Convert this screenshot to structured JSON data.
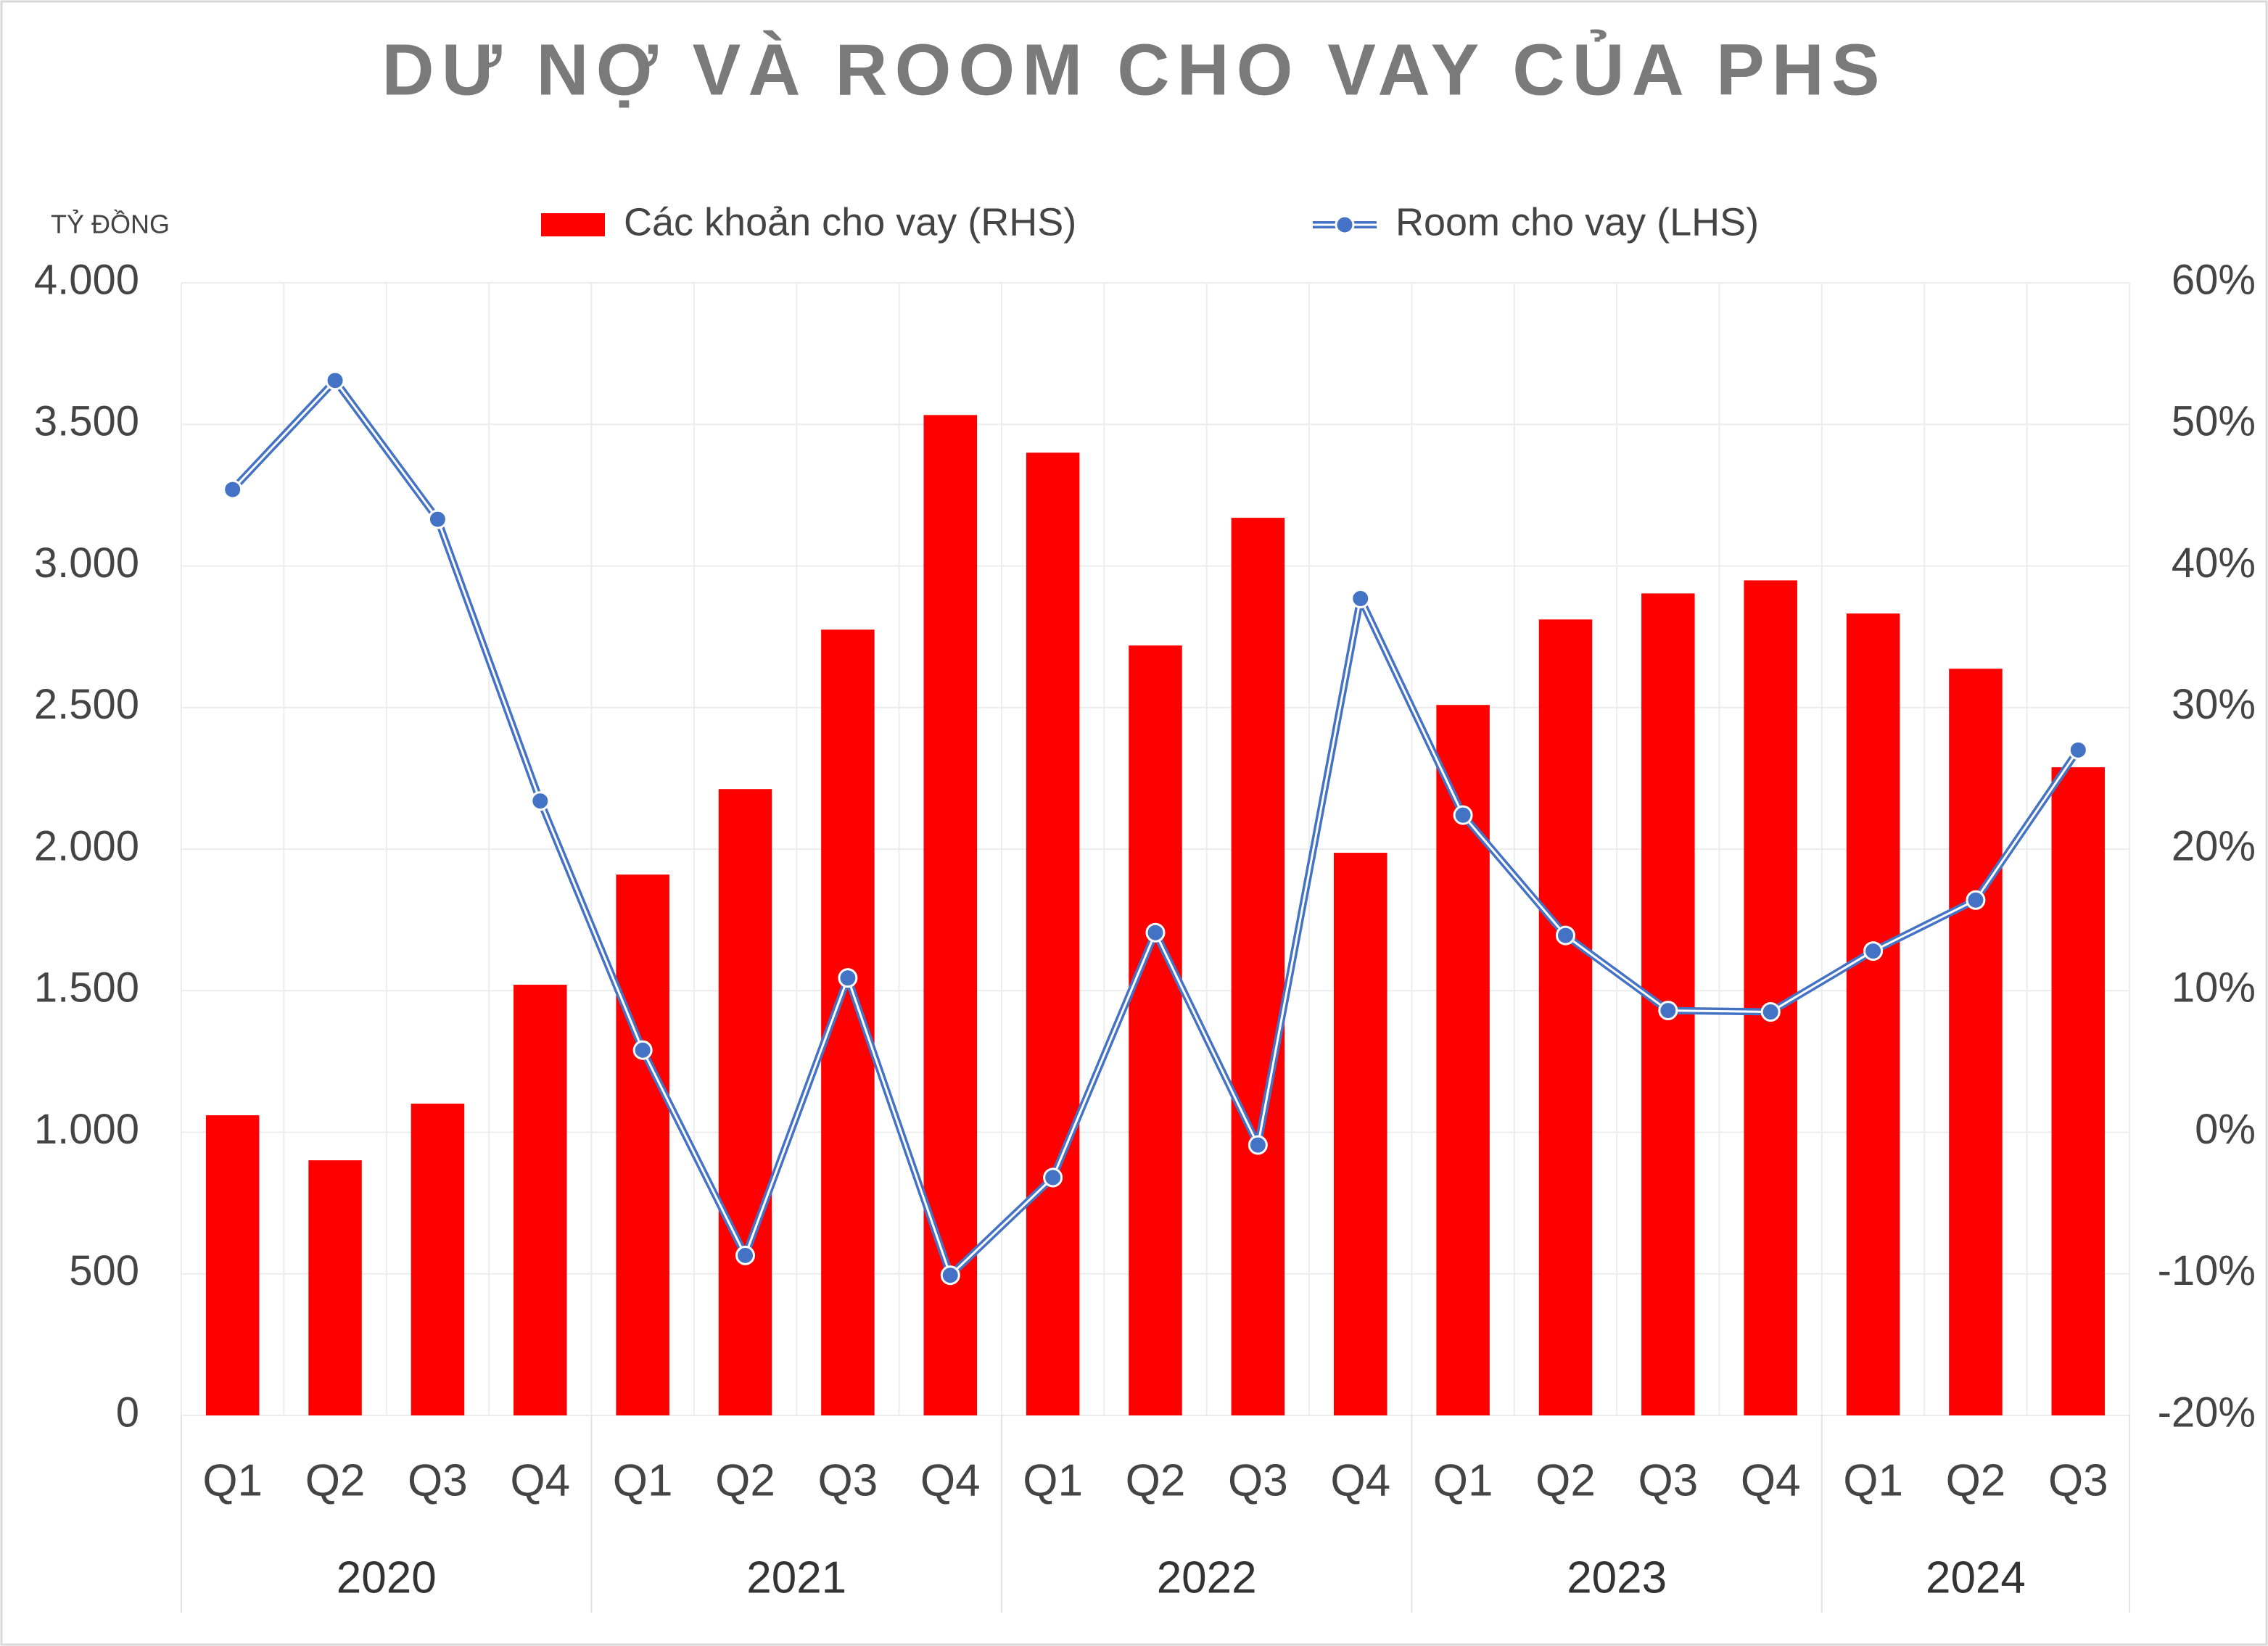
{
  "chart_data": {
    "type": "bar-line",
    "title": "DƯ NỢ VÀ ROOM CHO VAY CỦA PHS",
    "y_label": "TỶ ĐỒNG",
    "category_groups": [
      {
        "label": "2020",
        "categories": [
          "Q1",
          "Q2",
          "Q3",
          "Q4"
        ]
      },
      {
        "label": "2021",
        "categories": [
          "Q1",
          "Q2",
          "Q3",
          "Q4"
        ]
      },
      {
        "label": "2022",
        "categories": [
          "Q1",
          "Q2",
          "Q3",
          "Q4"
        ]
      },
      {
        "label": "2023",
        "categories": [
          "Q1",
          "Q2",
          "Q3",
          "Q4"
        ]
      },
      {
        "label": "2024",
        "categories": [
          "Q1",
          "Q2",
          "Q3"
        ]
      }
    ],
    "series": [
      {
        "name": "Các khoản cho vay (RHS)",
        "type": "bar",
        "color": "#ff0000",
        "axis": "y",
        "values": [
          1060,
          901,
          1101,
          1521,
          1910,
          2212,
          2775,
          3533,
          3400,
          2719,
          3170,
          1987,
          2509,
          2811,
          2903,
          2949,
          2832,
          2637,
          2289
        ]
      },
      {
        "name": "Room cho vay (LHS)",
        "type": "line",
        "color": "#4472c4",
        "axis": "y2",
        "values": [
          45.4,
          53.1,
          43.3,
          23.4,
          5.8,
          -8.7,
          10.9,
          -10.1,
          -3.2,
          14.1,
          -0.9,
          37.7,
          22.4,
          13.9,
          8.6,
          8.5,
          12.8,
          16.4,
          27.0
        ]
      }
    ],
    "ylim": [
      0,
      4000
    ],
    "yticks": [
      0,
      500,
      {
        "value": 1000,
        "label": "1.000"
      },
      {
        "value": 1500,
        "label": "1.500"
      },
      {
        "value": 2000,
        "label": "2.000"
      },
      {
        "value": 2500,
        "label": "2.500"
      },
      {
        "value": 3000,
        "label": "3.000"
      },
      {
        "value": 3500,
        "label": "3.500"
      },
      {
        "value": 4000,
        "label": "4.000"
      }
    ],
    "y2lim": [
      -20,
      60
    ],
    "y2ticks": [
      {
        "value": -20,
        "label": "-20%"
      },
      {
        "value": -10,
        "label": "-10%"
      },
      {
        "value": 0,
        "label": "0%"
      },
      {
        "value": 10,
        "label": "10%"
      },
      {
        "value": 20,
        "label": "20%"
      },
      {
        "value": 30,
        "label": "30%"
      },
      {
        "value": 40,
        "label": "40%"
      },
      {
        "value": 50,
        "label": "50%"
      },
      {
        "value": 60,
        "label": "60%"
      }
    ],
    "grid": true,
    "legend": "top"
  }
}
